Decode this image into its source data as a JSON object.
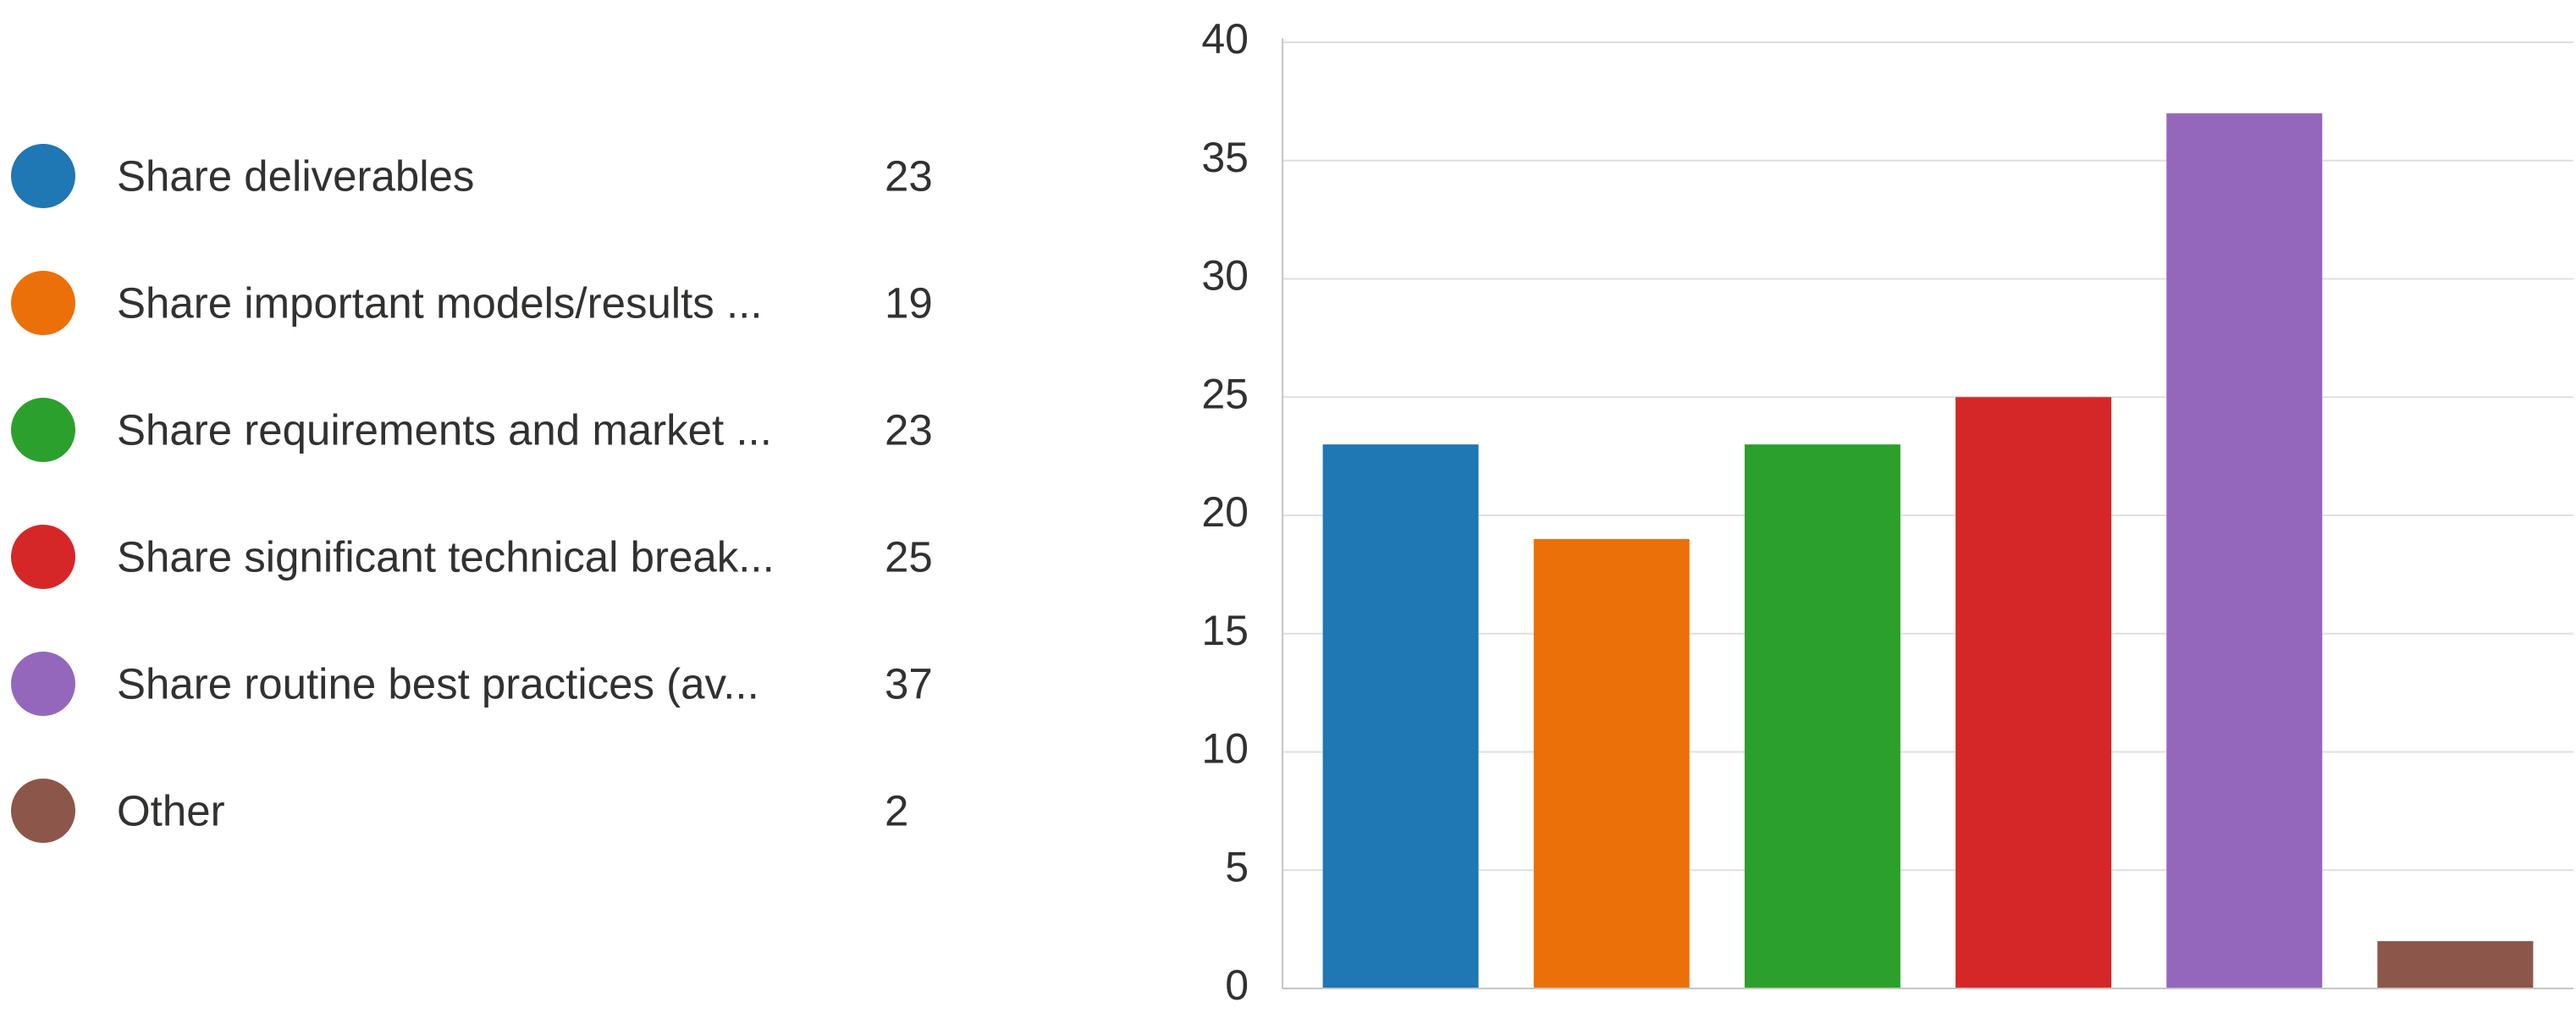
{
  "legend": {
    "items": [
      {
        "label": "Share deliverables",
        "count": "23",
        "color": "#1f77b4"
      },
      {
        "label": "Share important models/results ...",
        "count": "19",
        "color": "#ec700a"
      },
      {
        "label": "Share requirements and market ...",
        "count": "23",
        "color": "#2ca02c"
      },
      {
        "label": "Share significant technical break...",
        "count": "25",
        "color": "#d62728"
      },
      {
        "label": "Share routine best practices (av...",
        "count": "37",
        "color": "#9467bd"
      },
      {
        "label": "Other",
        "count": "2",
        "color": "#8c564b"
      }
    ]
  },
  "chart_data": {
    "type": "bar",
    "categories": [
      "Share deliverables",
      "Share important models/results ...",
      "Share requirements and market ...",
      "Share significant technical break...",
      "Share routine best practices (av...",
      "Other"
    ],
    "values": [
      23,
      19,
      23,
      25,
      37,
      2
    ],
    "colors": [
      "#1f77b4",
      "#ec700a",
      "#2ca02c",
      "#d62728",
      "#9467bd",
      "#8c564b"
    ],
    "ylim": [
      0,
      40
    ],
    "yticks": [
      0,
      5,
      10,
      15,
      20,
      25,
      30,
      35,
      40
    ],
    "grid": true,
    "legend_position": "left",
    "title": "",
    "xlabel": "",
    "ylabel": ""
  }
}
